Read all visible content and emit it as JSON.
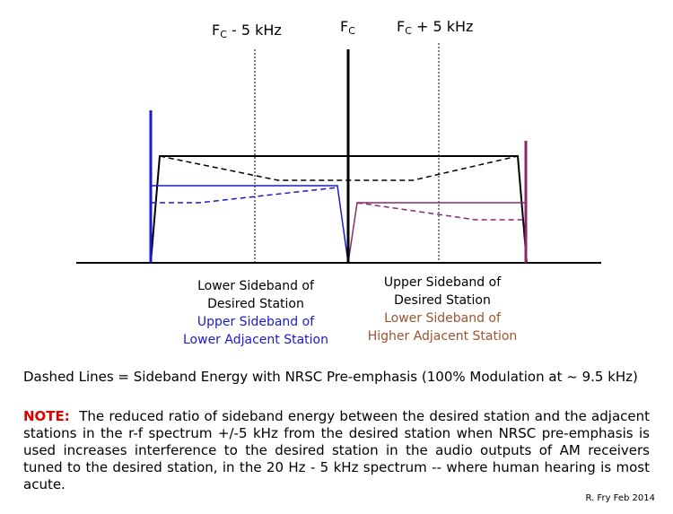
{
  "labels": {
    "fc_minus": {
      "main": "F",
      "sub": "C",
      "rest": " - 5 kHz"
    },
    "fc": {
      "main": "F",
      "sub": "C",
      "rest": ""
    },
    "fc_plus": {
      "main": "F",
      "sub": "C",
      "rest": " + 5 kHz"
    }
  },
  "left_block": {
    "line1": "Lower Sideband of",
    "line2": "Desired Station",
    "line3": "Upper Sideband of",
    "line4": "Lower Adjacent Station"
  },
  "right_block": {
    "line1": "Upper Sideband of",
    "line2": "Desired Station",
    "line3": "Lower Sideband of",
    "line4": "Higher Adjacent Station"
  },
  "legend_text": "Dashed Lines = Sideband Energy with NRSC Pre-emphasis (100% Modulation at ~ 9.5 kHz)",
  "note": {
    "keyword": "NOTE:",
    "body": "The reduced ratio of sideband energy between the desired station and the adjacent stations in the r-f spectrum +/-5 kHz from the desired station when NRSC pre-emphasis is used increases interference to the desired station in the audio outputs of AM receivers tuned to the desired station, in the 20 Hz - 5 kHz spectrum -- where human hearing is most acute."
  },
  "credit": "R. Fry Feb 2014",
  "colors": {
    "desired": "#000000",
    "lower_adjacent": "#1a1acc",
    "higher_adjacent": "#8b2a6a",
    "lower_adjacent_text": "#1a1acc",
    "higher_adjacent_text": "#a0522d",
    "note_keyword": "#e00000"
  }
}
